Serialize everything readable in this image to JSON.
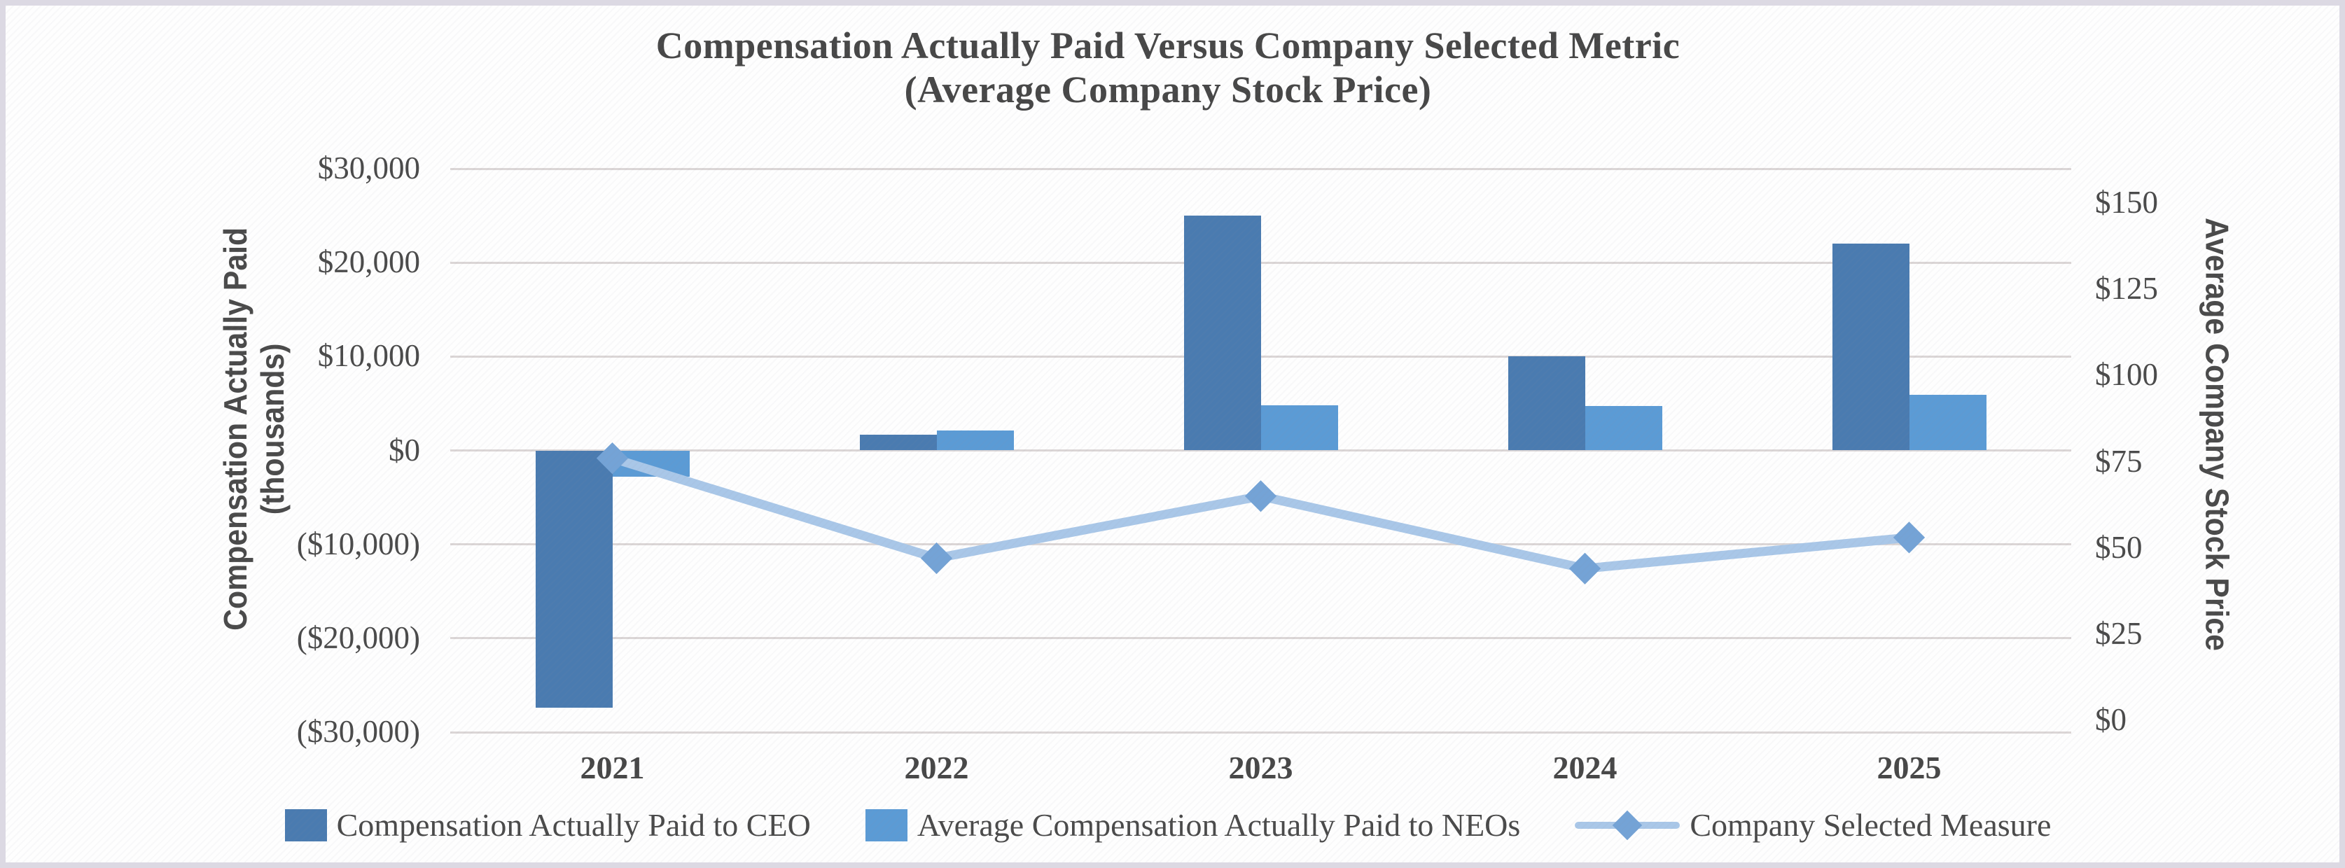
{
  "chart_data": {
    "type": "combo-bar-line",
    "title_line1": "Compensation Actually Paid Versus Company Selected Metric",
    "title_line2": "(Average Company Stock Price)",
    "categories": [
      "2021",
      "2022",
      "2023",
      "2024",
      "2025"
    ],
    "series": [
      {
        "name": "Compensation Actually Paid to CEO",
        "type": "bar",
        "axis": "left",
        "color": "#4A7BB0",
        "values": [
          -27400,
          1700,
          25000,
          10000,
          22000
        ]
      },
      {
        "name": "Average Compensation Actually Paid to NEOs",
        "type": "bar",
        "axis": "left",
        "color": "#5B9BD5",
        "values": [
          -2800,
          2100,
          4800,
          4700,
          5900
        ]
      },
      {
        "name": "Company Selected Measure",
        "type": "line",
        "axis": "right",
        "color": "#A9C7E8",
        "marker": "diamond",
        "marker_color": "#74A3D6",
        "values": [
          76,
          47,
          65,
          44,
          53
        ]
      }
    ],
    "left_axis": {
      "title_line1": "Compensation Actually Paid",
      "title_line2": "(thousands)",
      "tick_labels": [
        "$30,000",
        "$20,000",
        "$10,000",
        "$0",
        "($10,000)",
        "($20,000)",
        "($30,000)"
      ],
      "tick_values": [
        30000,
        20000,
        10000,
        0,
        -10000,
        -20000,
        -30000
      ],
      "min": -30000,
      "max": 30000
    },
    "right_axis": {
      "title": "Average Company Stock Price",
      "tick_labels": [
        "$150",
        "$125",
        "$100",
        "$75",
        "$50",
        "$25",
        "$0"
      ],
      "tick_values": [
        150,
        125,
        100,
        75,
        50,
        25,
        0
      ],
      "min": 0,
      "max": 150
    },
    "grid": true,
    "legend_position": "bottom"
  },
  "colors": {
    "gridline": "#DBD6D6",
    "text": "#4A4A4A",
    "frame": "#DCD9E3"
  }
}
